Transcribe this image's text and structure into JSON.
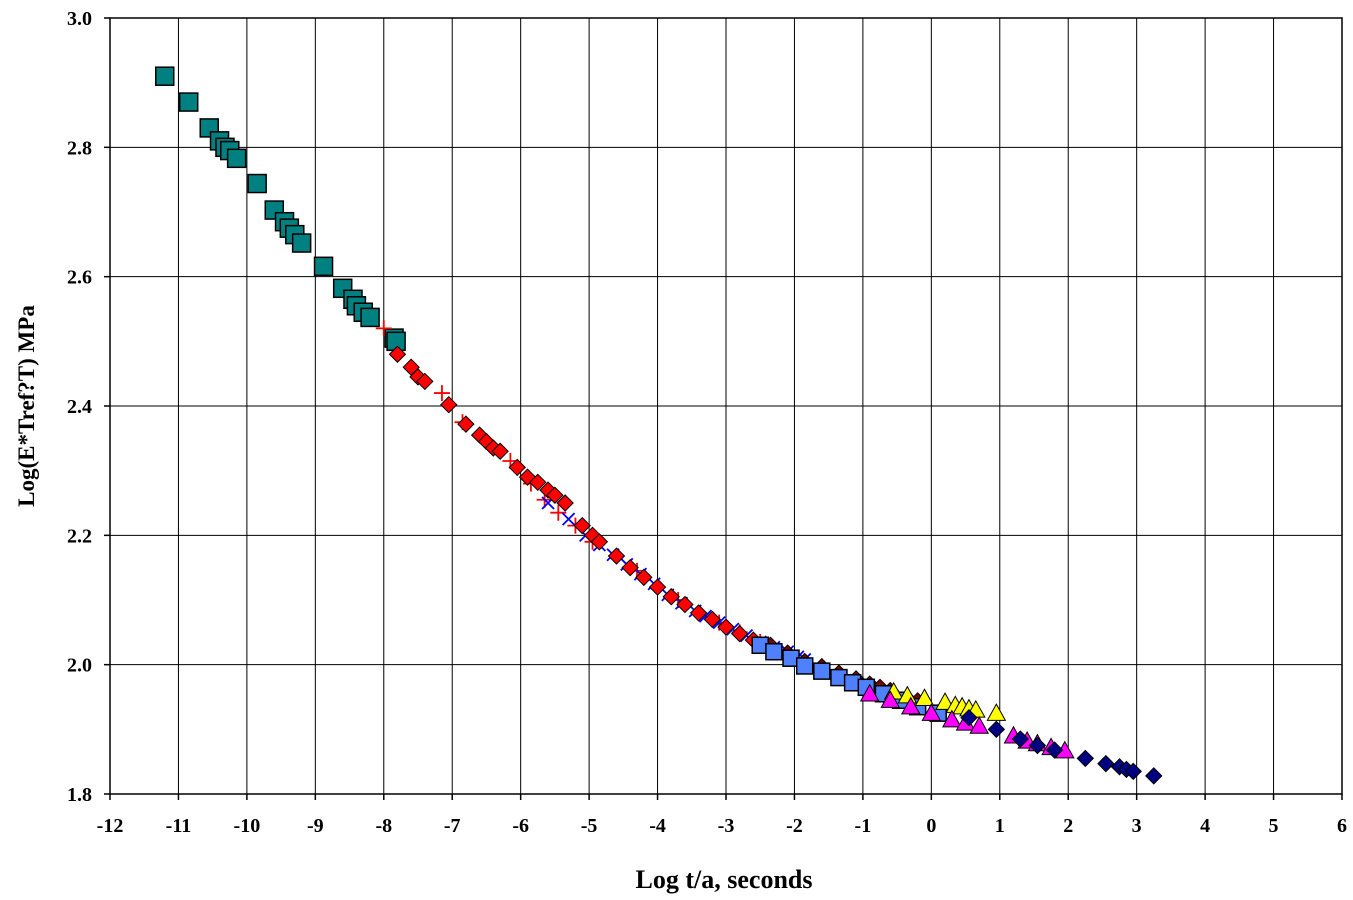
{
  "chart_data": {
    "type": "scatter",
    "title": "",
    "xlabel": "Log t/a, seconds",
    "ylabel": "Log(E*Tref?T) MPa",
    "xlim": [
      -12,
      6
    ],
    "ylim": [
      1.8,
      3.0
    ],
    "x_ticks": [
      "-12",
      "-11",
      "-10",
      "-9",
      "-8",
      "-7",
      "-6",
      "-5",
      "-4",
      "-3",
      "-2",
      "-1",
      "0",
      "1",
      "2",
      "3",
      "4",
      "5",
      "6"
    ],
    "y_ticks": [
      "1.8",
      "2.0",
      "2.2",
      "2.4",
      "2.6",
      "2.8",
      "3.0"
    ],
    "grid": true,
    "legend": "none",
    "series": [
      {
        "marker": "square",
        "color": "#008080",
        "points": [
          [
            -11.2,
            2.91
          ],
          [
            -10.85,
            2.87
          ],
          [
            -10.55,
            2.83
          ],
          [
            -10.4,
            2.81
          ],
          [
            -10.32,
            2.8
          ],
          [
            -10.25,
            2.795
          ],
          [
            -10.15,
            2.783
          ],
          [
            -9.85,
            2.744
          ],
          [
            -9.6,
            2.703
          ],
          [
            -9.45,
            2.685
          ],
          [
            -9.38,
            2.675
          ],
          [
            -9.3,
            2.665
          ],
          [
            -9.2,
            2.652
          ],
          [
            -8.88,
            2.616
          ],
          [
            -8.6,
            2.582
          ],
          [
            -8.45,
            2.565
          ],
          [
            -8.4,
            2.555
          ],
          [
            -8.3,
            2.545
          ],
          [
            -8.2,
            2.537
          ],
          [
            -7.85,
            2.505
          ],
          [
            -7.82,
            2.5
          ]
        ]
      },
      {
        "marker": "plus",
        "color": "#ff0000",
        "points": [
          [
            -8.0,
            2.52
          ],
          [
            -7.15,
            2.42
          ],
          [
            -6.85,
            2.375
          ],
          [
            -6.5,
            2.345
          ],
          [
            -6.15,
            2.315
          ],
          [
            -6.05,
            2.305
          ],
          [
            -5.85,
            2.28
          ],
          [
            -5.65,
            2.255
          ],
          [
            -5.45,
            2.235
          ],
          [
            -5.2,
            2.215
          ],
          [
            -4.95,
            2.19
          ],
          [
            -4.6,
            2.168
          ],
          [
            -4.3,
            2.145
          ],
          [
            -4.0,
            2.12
          ],
          [
            -3.7,
            2.1
          ],
          [
            -3.4,
            2.08
          ],
          [
            -3.1,
            2.065
          ],
          [
            -2.8,
            2.05
          ],
          [
            -2.5,
            2.035
          ]
        ]
      },
      {
        "marker": "x",
        "color": "#0000ff",
        "points": [
          [
            -5.6,
            2.25
          ],
          [
            -5.3,
            2.225
          ],
          [
            -5.05,
            2.2
          ],
          [
            -4.85,
            2.185
          ],
          [
            -4.65,
            2.17
          ],
          [
            -4.45,
            2.155
          ],
          [
            -4.25,
            2.14
          ],
          [
            -4.05,
            2.125
          ],
          [
            -3.85,
            2.108
          ],
          [
            -3.65,
            2.095
          ],
          [
            -3.45,
            2.083
          ],
          [
            -3.3,
            2.075
          ],
          [
            -3.1,
            2.065
          ],
          [
            -2.9,
            2.055
          ],
          [
            -2.7,
            2.045
          ],
          [
            -2.5,
            2.035
          ],
          [
            -2.3,
            2.027
          ],
          [
            -2.1,
            2.02
          ],
          [
            -1.95,
            2.012
          ],
          [
            -1.85,
            2.008
          ]
        ]
      },
      {
        "marker": "diamond",
        "color": "#ff0000",
        "points": [
          [
            -7.8,
            2.48
          ],
          [
            -7.6,
            2.46
          ],
          [
            -7.5,
            2.445
          ],
          [
            -7.4,
            2.438
          ],
          [
            -7.05,
            2.402
          ],
          [
            -6.8,
            2.372
          ],
          [
            -6.6,
            2.355
          ],
          [
            -6.5,
            2.345
          ],
          [
            -6.4,
            2.335
          ],
          [
            -6.3,
            2.33
          ],
          [
            -6.05,
            2.305
          ],
          [
            -5.9,
            2.29
          ],
          [
            -5.75,
            2.282
          ],
          [
            -5.6,
            2.27
          ],
          [
            -5.5,
            2.262
          ],
          [
            -5.35,
            2.25
          ],
          [
            -5.1,
            2.215
          ],
          [
            -4.95,
            2.2
          ],
          [
            -4.85,
            2.19
          ],
          [
            -4.6,
            2.168
          ],
          [
            -4.4,
            2.15
          ],
          [
            -4.2,
            2.135
          ],
          [
            -4.0,
            2.12
          ],
          [
            -3.8,
            2.105
          ],
          [
            -3.6,
            2.093
          ],
          [
            -3.4,
            2.08
          ],
          [
            -3.2,
            2.07
          ],
          [
            -3.0,
            2.058
          ],
          [
            -2.8,
            2.048
          ],
          [
            -2.6,
            2.038
          ]
        ]
      },
      {
        "marker": "diamond",
        "color": "#800000",
        "points": [
          [
            -2.35,
            2.03
          ],
          [
            -2.1,
            2.018
          ],
          [
            -1.85,
            2.005
          ],
          [
            -1.6,
            1.997
          ],
          [
            -1.35,
            1.987
          ],
          [
            -1.1,
            1.978
          ],
          [
            -0.9,
            1.97
          ],
          [
            -0.75,
            1.965
          ],
          [
            -0.6,
            1.96
          ],
          [
            -0.35,
            1.948
          ],
          [
            -0.2,
            1.944
          ]
        ]
      },
      {
        "marker": "square",
        "color": "#4f81ff",
        "points": [
          [
            -2.5,
            2.03
          ],
          [
            -2.3,
            2.02
          ],
          [
            -2.05,
            2.01
          ],
          [
            -1.85,
            1.998
          ],
          [
            -1.6,
            1.99
          ],
          [
            -1.35,
            1.98
          ],
          [
            -1.15,
            1.972
          ],
          [
            -0.95,
            1.965
          ],
          [
            -0.7,
            1.955
          ],
          [
            -0.45,
            1.945
          ],
          [
            -0.2,
            1.935
          ],
          [
            0.1,
            1.925
          ]
        ]
      },
      {
        "marker": "triangle",
        "color": "#ffff00",
        "points": [
          [
            -0.55,
            1.958
          ],
          [
            -0.35,
            1.952
          ],
          [
            -0.1,
            1.948
          ],
          [
            0.2,
            1.942
          ],
          [
            0.35,
            1.937
          ],
          [
            0.45,
            1.935
          ],
          [
            0.55,
            1.932
          ],
          [
            0.65,
            1.93
          ],
          [
            0.95,
            1.925
          ]
        ]
      },
      {
        "marker": "triangle",
        "color": "#ff00ff",
        "points": [
          [
            -0.9,
            1.955
          ],
          [
            -0.6,
            1.945
          ],
          [
            -0.3,
            1.935
          ],
          [
            0.0,
            1.925
          ],
          [
            0.3,
            1.915
          ],
          [
            0.5,
            1.91
          ],
          [
            0.7,
            1.905
          ],
          [
            1.2,
            1.89
          ],
          [
            1.4,
            1.882
          ],
          [
            1.55,
            1.878
          ],
          [
            1.75,
            1.872
          ],
          [
            1.95,
            1.867
          ]
        ]
      },
      {
        "marker": "diamond",
        "color": "#000080",
        "points": [
          [
            0.55,
            1.918
          ],
          [
            0.95,
            1.9
          ],
          [
            1.3,
            1.885
          ],
          [
            1.55,
            1.875
          ],
          [
            1.8,
            1.868
          ],
          [
            2.25,
            1.855
          ],
          [
            2.55,
            1.847
          ],
          [
            2.75,
            1.842
          ],
          [
            2.85,
            1.838
          ],
          [
            2.95,
            1.835
          ],
          [
            3.25,
            1.828
          ]
        ]
      }
    ]
  }
}
